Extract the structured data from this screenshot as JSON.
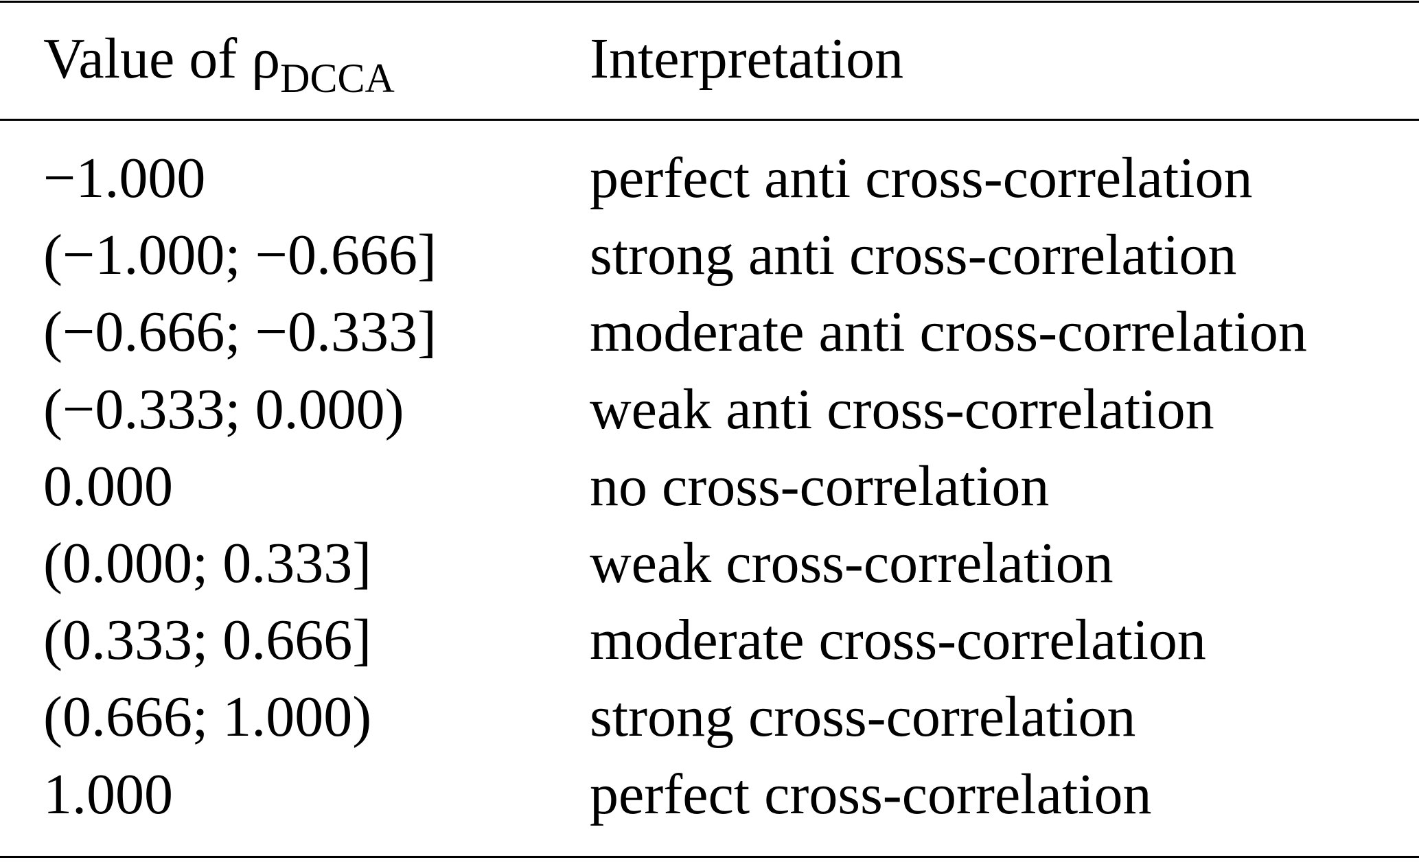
{
  "table": {
    "header": [
      {
        "text": "Value of ρ",
        "sub": "DCCA"
      },
      "Interpretation"
    ],
    "rows": [
      [
        "−1.000",
        "perfect anti cross-correlation"
      ],
      [
        "(−1.000; −0.666]",
        "strong anti cross-correlation"
      ],
      [
        "(−0.666; −0.333]",
        "moderate anti cross-correlation"
      ],
      [
        "(−0.333; 0.000)",
        "weak anti cross-correlation"
      ],
      [
        "0.000",
        "no cross-correlation"
      ],
      [
        "(0.000; 0.333]",
        "weak cross-correlation"
      ],
      [
        "(0.333; 0.666]",
        "moderate cross-correlation"
      ],
      [
        "(0.666; 1.000)",
        "strong cross-correlation"
      ],
      [
        "1.000",
        "perfect cross-correlation"
      ]
    ]
  }
}
